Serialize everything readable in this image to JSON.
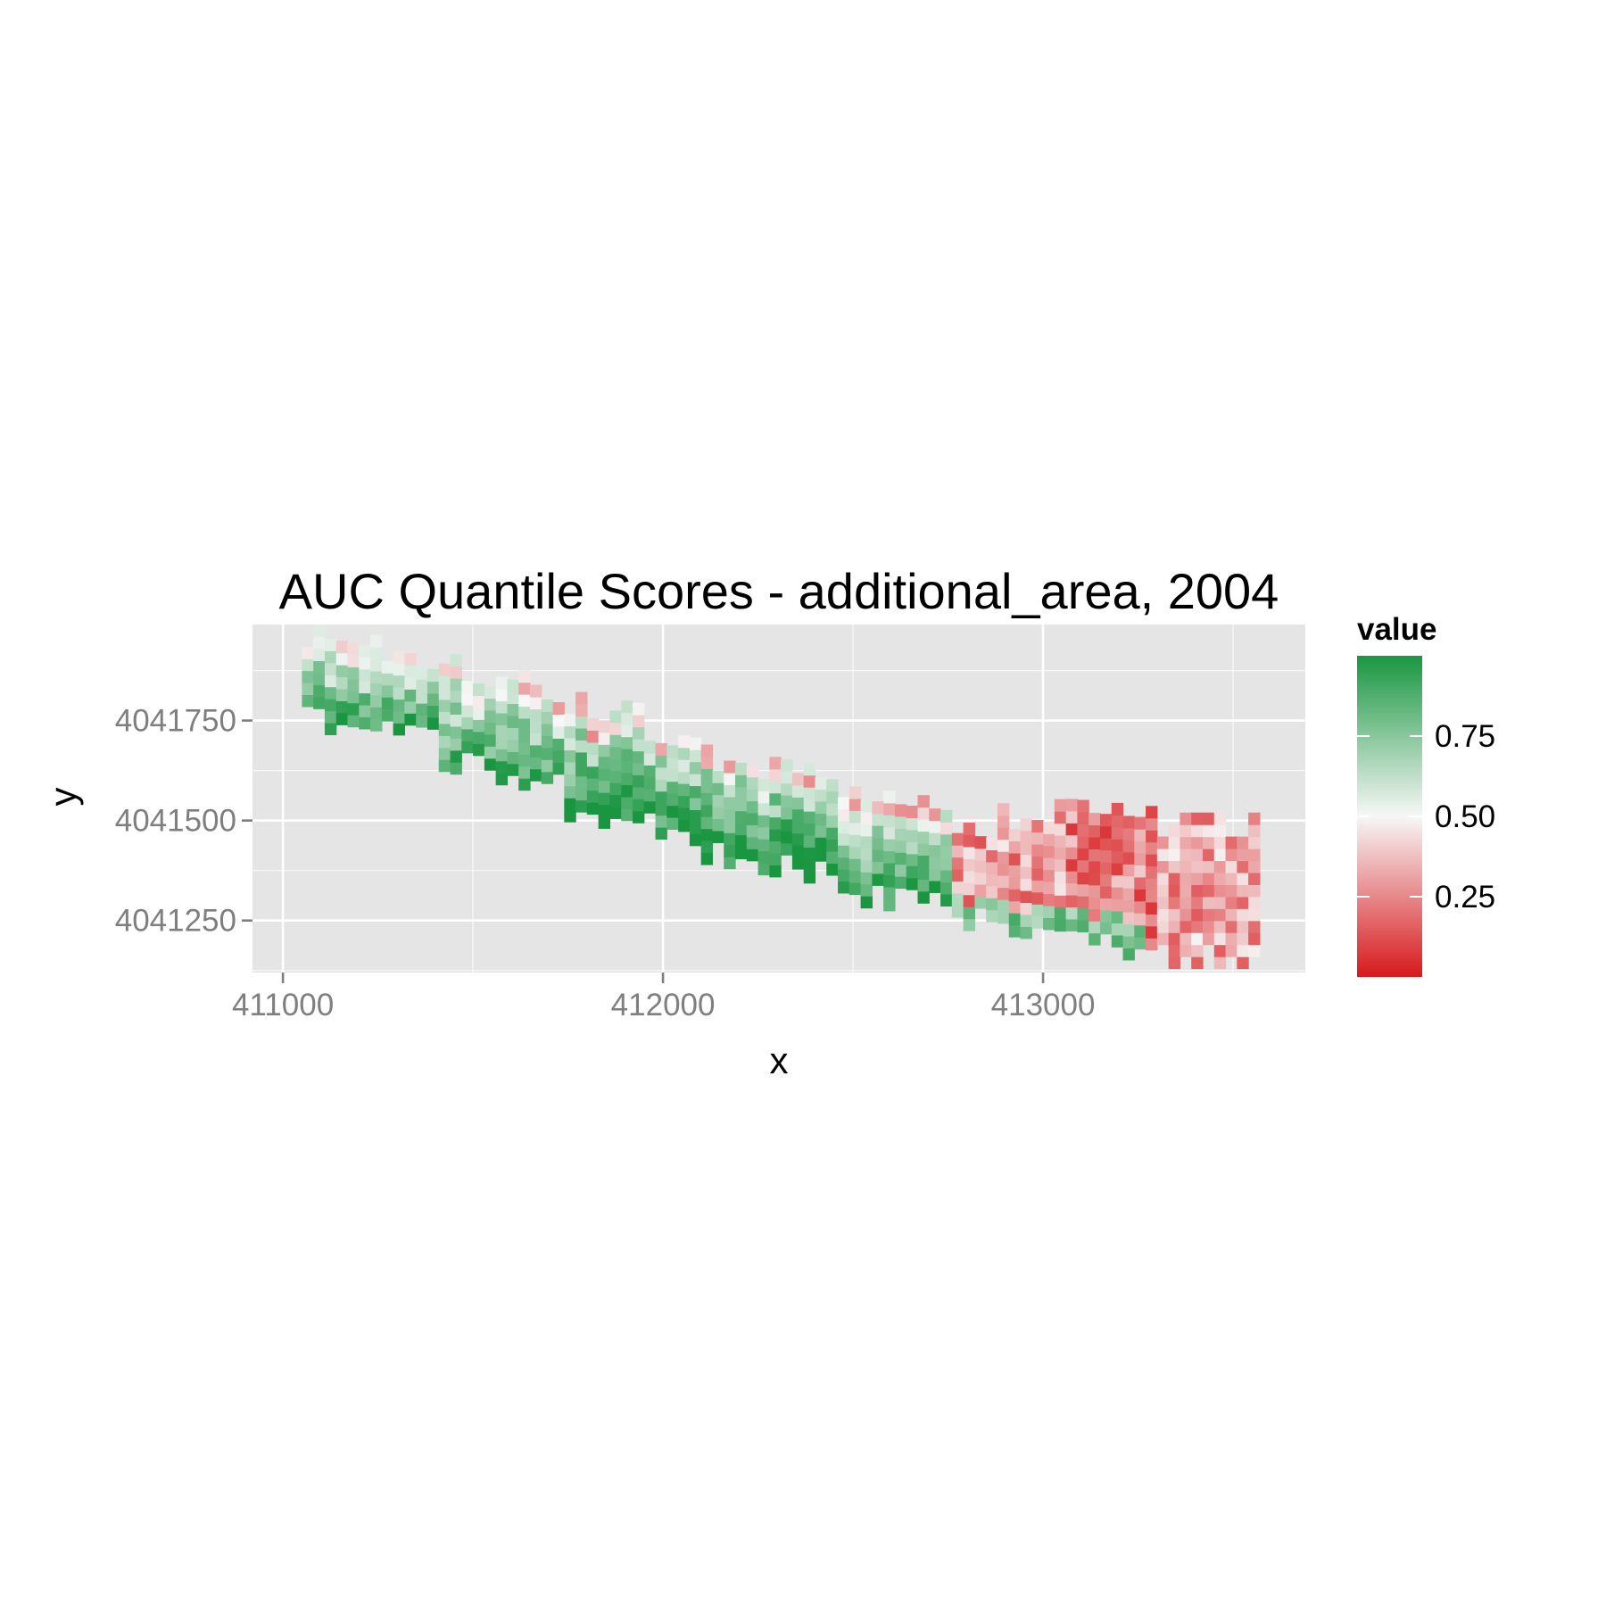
{
  "chart_data": {
    "type": "heatmap",
    "title": "AUC Quantile Scores - additional_area, 2004",
    "xlabel": "x",
    "ylabel": "y",
    "xlim": [
      410920,
      413690
    ],
    "ylim": [
      4041120,
      4041990
    ],
    "x_ticks": [
      {
        "value": 411000,
        "label": "411000"
      },
      {
        "value": 412000,
        "label": "412000"
      },
      {
        "value": 413000,
        "label": "413000"
      }
    ],
    "y_ticks": [
      {
        "value": 4041250,
        "label": "4041250"
      },
      {
        "value": 4041500,
        "label": "4041500"
      },
      {
        "value": 4041750,
        "label": "4041750"
      }
    ],
    "grid": true,
    "cell_size": 30,
    "value_range": [
      0,
      1
    ],
    "colors": {
      "low": "#d7191c",
      "mid": "#f7f7f7",
      "high": "#1a9641",
      "panel": "#e5e5e5",
      "grid": "#ffffff"
    },
    "legend": {
      "title": "value",
      "position": "right",
      "ticks": [
        {
          "value": 0.25,
          "label": "0.25"
        },
        {
          "value": 0.5,
          "label": "0.50"
        },
        {
          "value": 0.75,
          "label": "0.75"
        }
      ]
    },
    "regions": [
      {
        "x0": 411050,
        "x1": 411400,
        "y_top": 4041955,
        "y_bottom": 4041755,
        "value": 0.72
      },
      {
        "x0": 411400,
        "x1": 411750,
        "y_top": 4041870,
        "y_bottom": 4041655,
        "value": 0.74
      },
      {
        "x0": 411750,
        "x1": 412100,
        "y_top": 4041770,
        "y_bottom": 4041525,
        "value": 0.8
      },
      {
        "x0": 412100,
        "x1": 412450,
        "y_top": 4041650,
        "y_bottom": 4041420,
        "value": 0.82
      },
      {
        "x0": 412450,
        "x1": 412750,
        "y_top": 4041545,
        "y_bottom": 4041320,
        "value": 0.76
      },
      {
        "x0": 412750,
        "x1": 413050,
        "y_top": 4041465,
        "y_bottom": 4041260,
        "value": 0.3
      },
      {
        "x0": 413050,
        "x1": 413300,
        "y_top": 4041545,
        "y_bottom": 4041195,
        "value": 0.24
      },
      {
        "x0": 413300,
        "x1": 413570,
        "y_top": 4041470,
        "y_bottom": 4041160,
        "value": 0.32
      }
    ]
  }
}
